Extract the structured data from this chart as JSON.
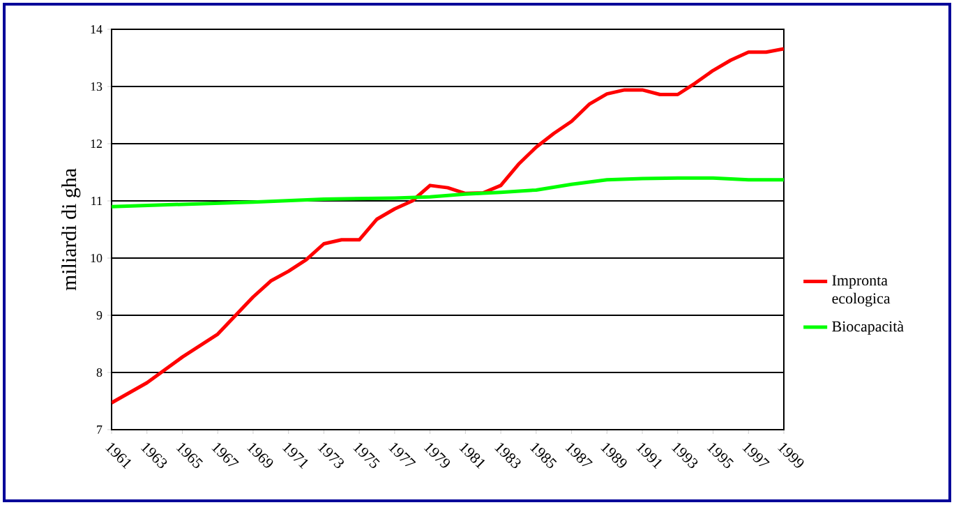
{
  "chart_data": {
    "type": "line",
    "ylabel": "miliardi di gha",
    "xlim": [
      1961,
      1999
    ],
    "xticks": [
      1961,
      1963,
      1965,
      1967,
      1969,
      1971,
      1973,
      1975,
      1977,
      1979,
      1981,
      1983,
      1985,
      1987,
      1989,
      1991,
      1993,
      1995,
      1997,
      1999
    ],
    "ylim": [
      7,
      14
    ],
    "yticks": [
      7,
      8,
      9,
      10,
      11,
      12,
      13,
      14
    ],
    "grid": "y",
    "legend": "right",
    "marker": "none",
    "line_style": "solid",
    "series": [
      {
        "name": "Impronta ecologica",
        "color": "#ff0000",
        "x": [
          1961,
          1963,
          1965,
          1967,
          1969,
          1970,
          1971,
          1972,
          1973,
          1974,
          1975,
          1976,
          1977,
          1978,
          1979,
          1980,
          1981,
          1982,
          1983,
          1984,
          1985,
          1986,
          1987,
          1988,
          1989,
          1990,
          1991,
          1992,
          1993,
          1994,
          1995,
          1996,
          1997,
          1998,
          1999
        ],
        "values": [
          7.47,
          7.82,
          8.27,
          8.67,
          9.32,
          9.6,
          9.77,
          9.97,
          10.25,
          10.32,
          10.32,
          10.68,
          10.86,
          11.0,
          11.27,
          11.23,
          11.13,
          11.14,
          11.27,
          11.64,
          11.94,
          12.18,
          12.39,
          12.69,
          12.87,
          12.94,
          12.94,
          12.86,
          12.86,
          13.06,
          13.28,
          13.46,
          13.6,
          13.6,
          13.66
        ]
      },
      {
        "name": "Biocapacità",
        "color": "#00ff00",
        "x": [
          1961,
          1965,
          1969,
          1973,
          1977,
          1979,
          1981,
          1983,
          1985,
          1987,
          1989,
          1991,
          1993,
          1995,
          1997,
          1999
        ],
        "values": [
          10.9,
          10.94,
          10.98,
          11.03,
          11.05,
          11.07,
          11.12,
          11.15,
          11.19,
          11.29,
          11.37,
          11.39,
          11.4,
          11.4,
          11.37,
          11.37
        ]
      }
    ]
  }
}
